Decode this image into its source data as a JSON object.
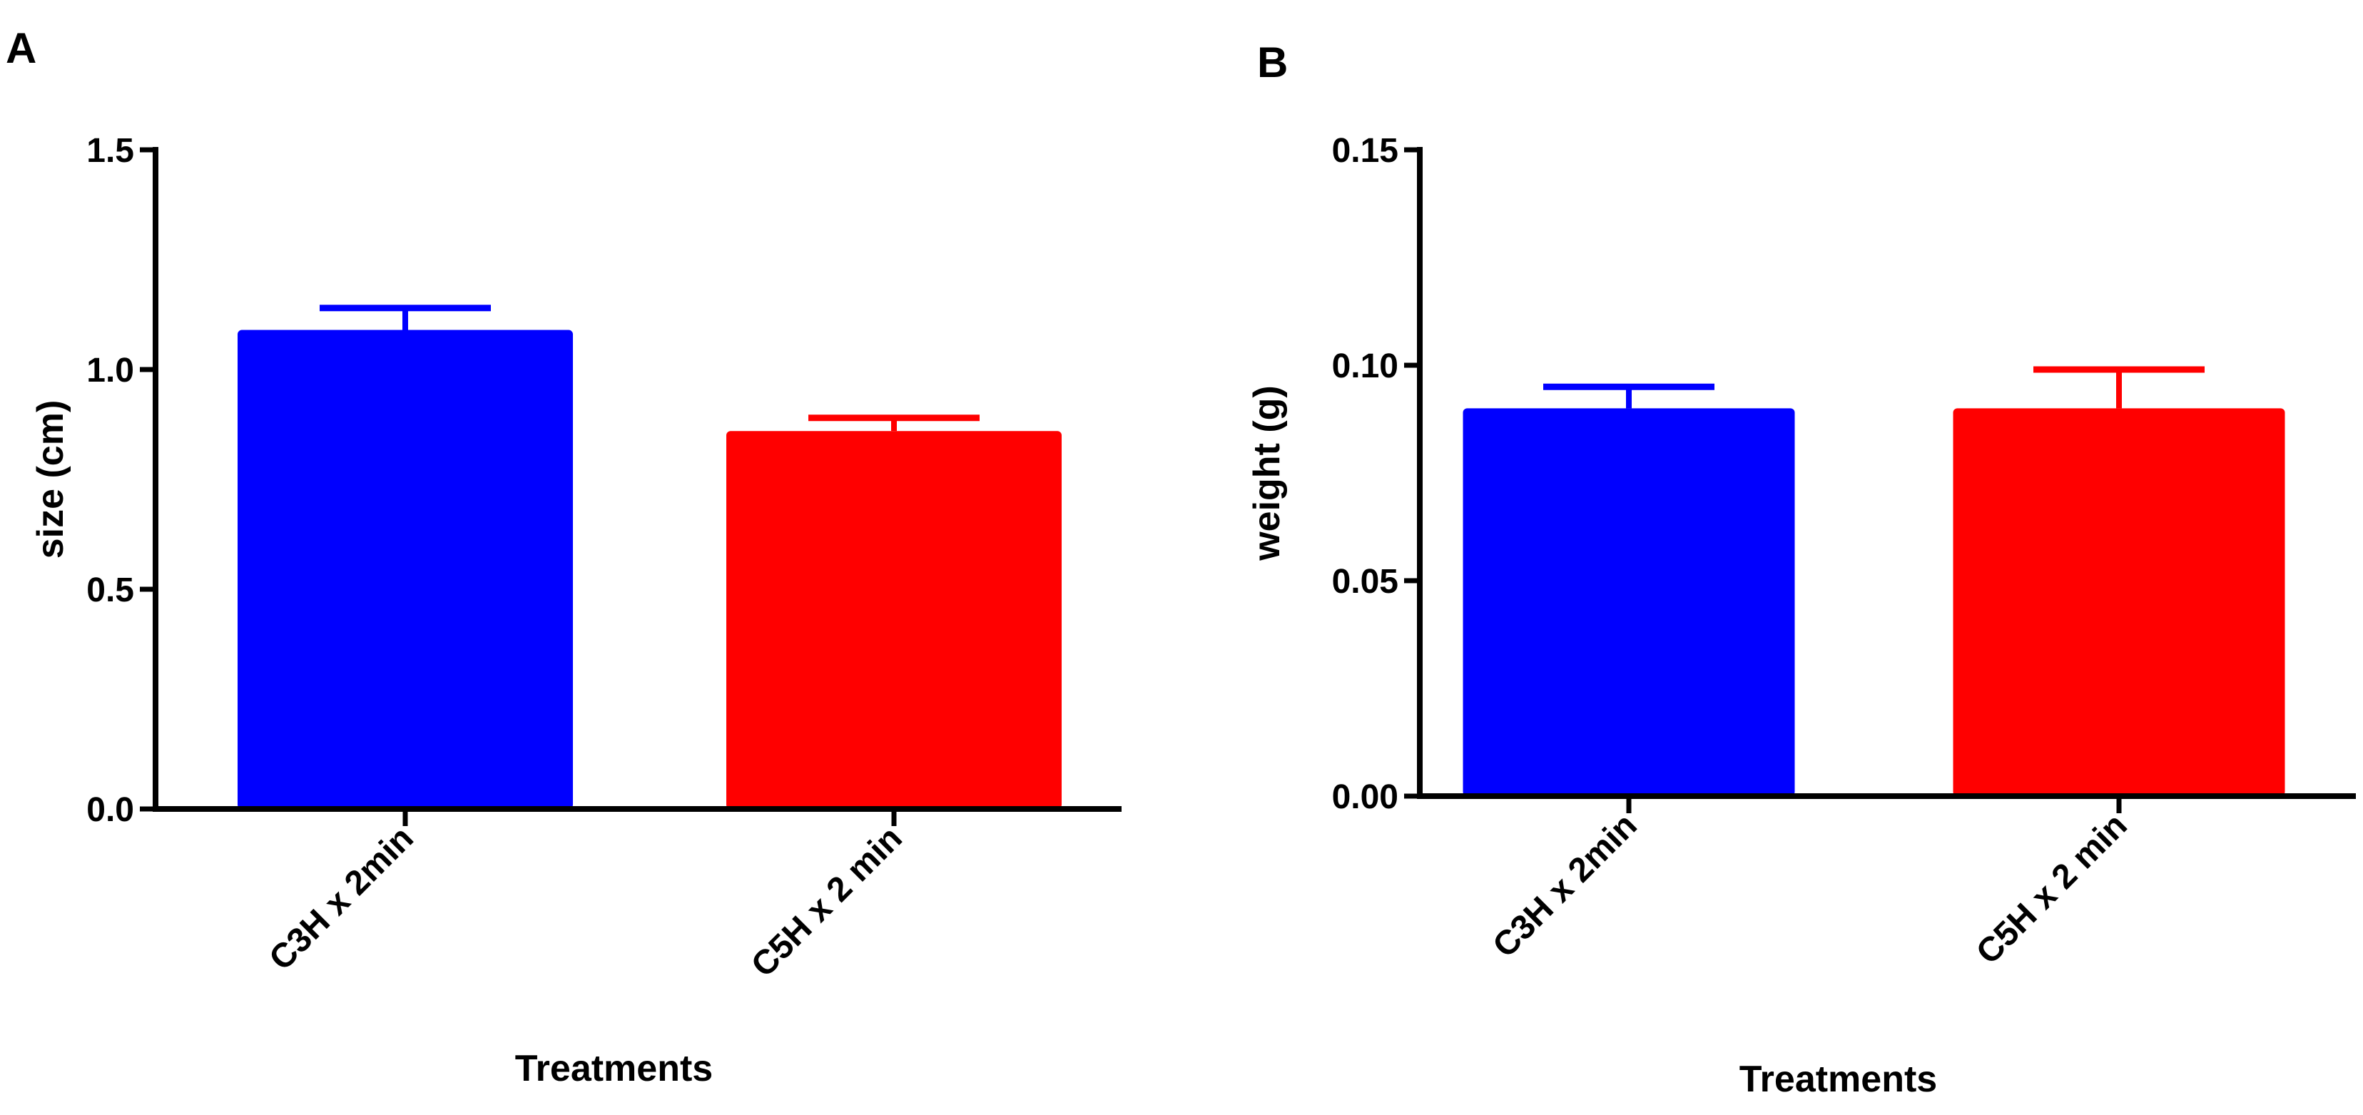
{
  "chart_data": [
    {
      "panel": "A",
      "type": "bar",
      "categories": [
        "C3H x 2min",
        "C5H x 2 min"
      ],
      "values": [
        1.09,
        0.86
      ],
      "errors": [
        0.05,
        0.03
      ],
      "colors": [
        "#0000ff",
        "#ff0000"
      ],
      "xlabel": "Treatments",
      "ylabel": "size (cm)",
      "ylim": [
        0,
        1.5
      ],
      "yticks": [
        0.0,
        0.5,
        1.0,
        1.5
      ],
      "ytick_labels": [
        "0.0",
        "0.5",
        "1.0",
        "1.5"
      ],
      "grid": false,
      "legend": false
    },
    {
      "panel": "B",
      "type": "bar",
      "categories": [
        "C3H x 2min",
        "C5H x 2 min"
      ],
      "values": [
        0.09,
        0.09
      ],
      "errors": [
        0.005,
        0.009
      ],
      "colors": [
        "#0000ff",
        "#ff0000"
      ],
      "xlabel": "Treatments",
      "ylabel": "weight (g)",
      "ylim": [
        0,
        0.15
      ],
      "yticks": [
        0.0,
        0.05,
        0.1,
        0.15
      ],
      "ytick_labels": [
        "0.00",
        "0.05",
        "0.10",
        "0.15"
      ],
      "grid": false,
      "legend": false
    }
  ]
}
